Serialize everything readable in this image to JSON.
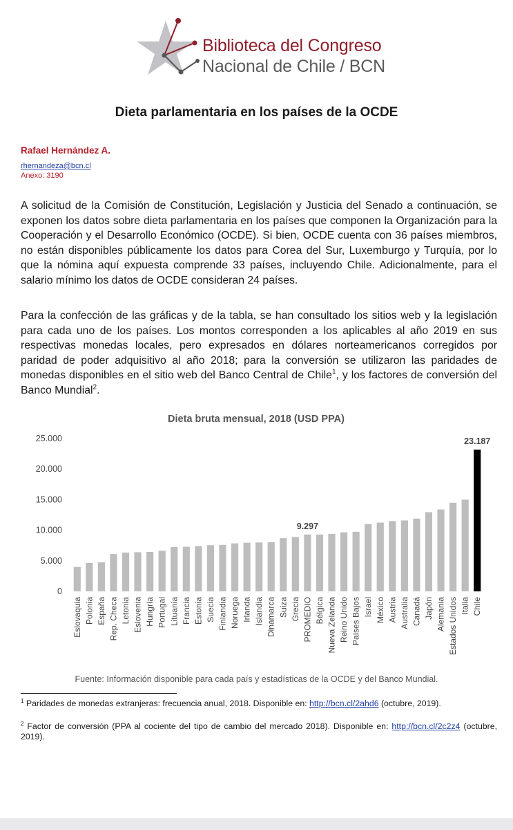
{
  "header": {
    "logo_line1": "Biblioteca del Congreso",
    "logo_line2": "Nacional de Chile / BCN"
  },
  "document": {
    "title": "Dieta parlamentaria en los países de la OCDE",
    "author": "Rafael Hernández A.",
    "email": "rhernandeza@bcn.cl",
    "annex": "Anexo: 3190",
    "paragraph1": "A solicitud de la Comisión de Constitución, Legislación y Justicia del Senado a continuación, se exponen los datos sobre dieta parlamentaria en los países que componen la Organización para la Cooperación y el Desarrollo Económico (OCDE). Si bien, OCDE cuenta con 36 países miembros, no están disponibles públicamente los datos para Corea del Sur, Luxemburgo y Turquía, por lo que la nómina aquí expuesta comprende 33 países, incluyendo Chile. Adicionalmente, para el salario mínimo los datos de OCDE consideran 24 países.",
    "paragraph2_text": "Para la confección de las gráficas y de la tabla, se han consultado los sitios web y la legislación para cada uno de los países. Los montos corresponden a los aplicables al año 2019 en sus respectivas monedas locales, pero expresados en dólares norteamericanos corregidos por paridad de poder adquisitivo al año 2018; para la conversión se utilizaron las paridades de monedas disponibles en el sitio web del Banco Central de Chile",
    "paragraph2_sup1": "1",
    "paragraph2_tail": ", y los factores de conversión del Banco Mundial",
    "paragraph2_sup2": "2",
    "paragraph2_end": "."
  },
  "chart_data": {
    "type": "bar",
    "title": "Dieta bruta mensual, 2018 (USD PPA)",
    "xlabel": "",
    "ylabel": "",
    "ylim": [
      0,
      25000
    ],
    "yticks": [
      "0",
      "5.000",
      "10.000",
      "15.000",
      "20.000",
      "25.000"
    ],
    "categories": [
      "Eslovaquia",
      "Polonia",
      "España",
      "Rep. Checa",
      "Letonia",
      "Eslovenia",
      "Hungría",
      "Portugal",
      "Lituania",
      "Francia",
      "Estonia",
      "Suecia",
      "Finlandia",
      "Noruega",
      "Irlanda",
      "Islandia",
      "Dinamarca",
      "Suiza",
      "Grecia",
      "PROMEDIO",
      "Bélgica",
      "Nueva Zelanda",
      "Reino Unido",
      "Países Bajos",
      "Israel",
      "México",
      "Austria",
      "Australia",
      "Canadá",
      "Japón",
      "Alemania",
      "Estados Unidos",
      "Italia",
      "Chile"
    ],
    "values": [
      4000,
      4650,
      4750,
      6100,
      6350,
      6400,
      6450,
      6650,
      7250,
      7300,
      7400,
      7550,
      7600,
      7850,
      7950,
      8000,
      8050,
      8700,
      8900,
      9297,
      9300,
      9400,
      9650,
      9750,
      11000,
      11250,
      11500,
      11600,
      11900,
      12950,
      13400,
      14500,
      15000,
      23187
    ],
    "bar_color": "#bdbdbd",
    "highlight_color": "#000000",
    "highlight_category": "Chile",
    "data_labels": [
      {
        "category": "PROMEDIO",
        "text": "9.297"
      },
      {
        "category": "Chile",
        "text": "23.187"
      }
    ],
    "grid": false,
    "legend": "none"
  },
  "source_note": "Fuente: Información disponible para cada país y estadísticas de la OCDE y del Banco Mundial.",
  "footnotes": [
    {
      "mark": "1",
      "text": "Paridades de monedas extranjeras: frecuencia anual, 2018. Disponible en: ",
      "link": "http://bcn.cl/2ahd6",
      "tail": " (octubre, 2019)."
    },
    {
      "mark": "2",
      "text": "Factor de conversión (PPA al cociente del tipo de cambio del mercado 2018). Disponible en: ",
      "link": "http://bcn.cl/2c2z4",
      "tail": " (octubre, 2019)."
    }
  ],
  "colors": {
    "brand_red": "#8e1f2b",
    "author_red": "#b3202c",
    "link_blue": "#1f3fa6"
  }
}
